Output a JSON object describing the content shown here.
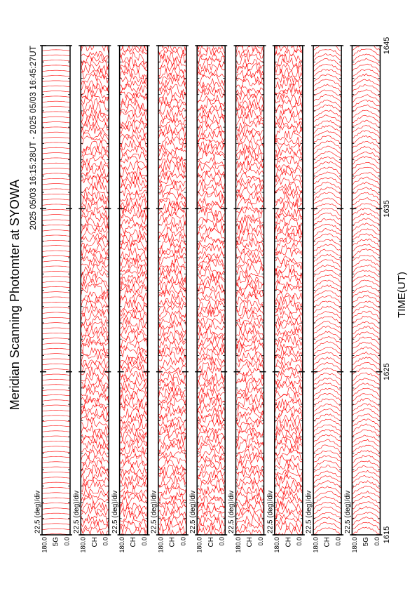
{
  "chart_data": {
    "type": "line",
    "title": "Meridian Scanning Photomter at SYOWA",
    "subtitle": "2025 05/03 16:15:28UT - 2025 05/03 16:45:27UT",
    "x_label": "TIME(UT)",
    "xlim": [
      1615,
      1645
    ],
    "xticks": [
      1615,
      1625,
      1635,
      1645
    ],
    "line_color": "#ff0000",
    "panels": [
      {
        "channel": "5G",
        "scale_label": "22.5 (deg)/div",
        "ylim": [
          0,
          180
        ],
        "yticks": [
          {
            "value": 180,
            "label": "180.0"
          },
          {
            "value": 0,
            "label": "0.0"
          }
        ]
      },
      {
        "channel": "CH",
        "scale_label": "22.5 (deg)/div",
        "ylim": [
          0,
          180
        ],
        "yticks": [
          {
            "value": 180,
            "label": "180.0"
          },
          {
            "value": 0,
            "label": "0.0"
          }
        ]
      },
      {
        "channel": "CH",
        "scale_label": "22.5 (deg)/div",
        "ylim": [
          0,
          180
        ],
        "yticks": [
          {
            "value": 180,
            "label": "180.0"
          },
          {
            "value": 0,
            "label": "0.0"
          }
        ]
      },
      {
        "channel": "CH",
        "scale_label": "22.5 (deg)/div",
        "ylim": [
          0,
          180
        ],
        "yticks": [
          {
            "value": 180,
            "label": "180.0"
          },
          {
            "value": 0,
            "label": "0.0"
          }
        ]
      },
      {
        "channel": "CH",
        "scale_label": "22.5 (deg)/div",
        "ylim": [
          0,
          180
        ],
        "yticks": [
          {
            "value": 180,
            "label": "180.0"
          },
          {
            "value": 0,
            "label": "0.0"
          }
        ]
      },
      {
        "channel": "CH",
        "scale_label": "22.5 (deg)/div",
        "ylim": [
          0,
          180
        ],
        "yticks": [
          {
            "value": 180,
            "label": "180.0"
          },
          {
            "value": 0,
            "label": "0.0"
          }
        ]
      },
      {
        "channel": "CH",
        "scale_label": "22.5 (deg)/div",
        "ylim": [
          0,
          180
        ],
        "yticks": [
          {
            "value": 180,
            "label": "180.0"
          },
          {
            "value": 0,
            "label": "0.0"
          }
        ]
      },
      {
        "channel": "CH",
        "scale_label": "22.5 (deg)/div",
        "ylim": [
          0,
          180
        ],
        "yticks": [
          {
            "value": 180,
            "label": "180.0"
          },
          {
            "value": 0,
            "label": "0.0"
          }
        ]
      },
      {
        "channel": "5G",
        "scale_label": "22.5 (deg)/div",
        "ylim": [
          0,
          180
        ],
        "yticks": [
          {
            "value": 180,
            "label": "180.0"
          },
          {
            "value": 0,
            "label": "0.0"
          }
        ]
      }
    ]
  }
}
